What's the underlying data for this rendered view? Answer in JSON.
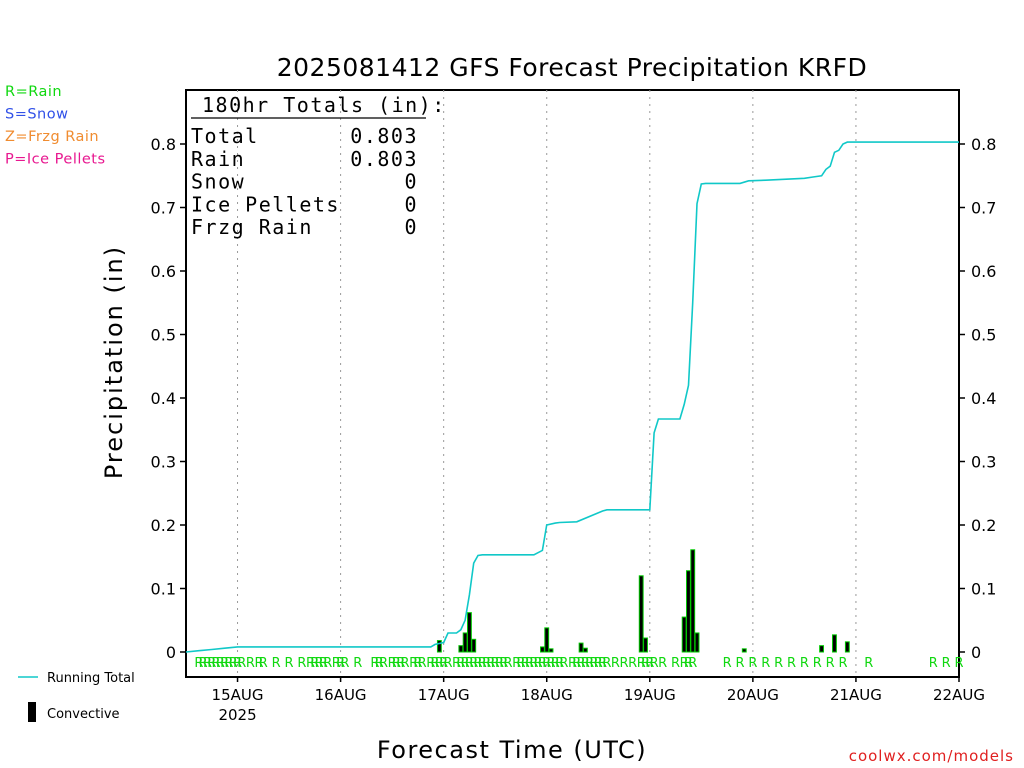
{
  "chart_data": {
    "type": "bar",
    "title": "2025081412 GFS Forecast Precipitation KRFD",
    "xlabel": "Forecast Time (UTC)",
    "ylabel": "Precipitation (in)",
    "ylim": [
      0,
      0.88
    ],
    "yticks": [
      0,
      0.1,
      0.2,
      0.3,
      0.4,
      0.5,
      0.6,
      0.7,
      0.8
    ],
    "ytick_labels": [
      "0",
      "0.1",
      "0.2",
      "0.3",
      "0.4",
      "0.5",
      "0.6",
      "0.7",
      "0.8"
    ],
    "xlim_hours_from_start": [
      0,
      180
    ],
    "x_tick_labels": [
      "15AUG",
      "16AUG",
      "17AUG",
      "18AUG",
      "19AUG",
      "20AUG",
      "21AUG",
      "22AUG"
    ],
    "x_tick_hours": [
      12,
      36,
      60,
      84,
      108,
      132,
      156,
      180
    ],
    "year_label": "2025",
    "grid": "vertical dotted at day boundaries",
    "series": [
      {
        "name": "Running Total",
        "color": "#10c8c8",
        "x_hours": [
          0,
          3,
          6,
          9,
          12,
          24,
          48,
          57,
          58,
          60,
          61,
          62,
          63,
          64,
          65,
          66,
          67,
          68,
          69,
          81,
          83,
          84,
          86,
          87,
          91,
          97,
          98,
          99,
          100,
          108,
          109,
          110,
          115,
          116,
          117,
          118,
          119,
          120,
          121,
          129,
          131,
          135,
          141,
          144,
          146,
          148,
          149,
          150,
          151,
          152,
          153,
          154,
          180
        ],
        "values": [
          0.0,
          0.002,
          0.004,
          0.006,
          0.008,
          0.008,
          0.008,
          0.008,
          0.012,
          0.015,
          0.03,
          0.03,
          0.03,
          0.035,
          0.05,
          0.09,
          0.14,
          0.152,
          0.153,
          0.153,
          0.16,
          0.2,
          0.203,
          0.204,
          0.205,
          0.222,
          0.224,
          0.224,
          0.224,
          0.224,
          0.345,
          0.367,
          0.367,
          0.39,
          0.42,
          0.55,
          0.706,
          0.737,
          0.738,
          0.738,
          0.742,
          0.743,
          0.745,
          0.746,
          0.748,
          0.75,
          0.76,
          0.765,
          0.787,
          0.79,
          0.8,
          0.803,
          0.803
        ]
      },
      {
        "name": "Convective",
        "color": "#000000",
        "edge_color": "#00c800",
        "x_hours": [
          59,
          64,
          65,
          66,
          67,
          83,
          84,
          85,
          92,
          93,
          106,
          107,
          116,
          117,
          118,
          119,
          130,
          148,
          151,
          154
        ],
        "values": [
          0.018,
          0.01,
          0.03,
          0.062,
          0.02,
          0.008,
          0.038,
          0.005,
          0.014,
          0.006,
          0.12,
          0.022,
          0.055,
          0.128,
          0.161,
          0.03,
          0.005,
          0.01,
          0.027,
          0.016
        ]
      }
    ],
    "precip_type_x_hours": [
      3,
      4,
      5,
      6,
      7,
      8,
      9,
      10,
      11,
      12,
      13,
      15,
      17,
      18,
      21,
      24,
      27,
      29,
      30,
      31,
      32,
      33,
      35,
      36,
      37,
      40,
      44,
      45,
      46,
      48,
      49,
      50,
      51,
      53,
      54,
      55,
      57,
      58,
      59,
      60,
      61,
      63,
      64,
      65,
      66,
      67,
      68,
      69,
      70,
      71,
      72,
      73,
      74,
      75,
      77,
      78,
      79,
      80,
      81,
      82,
      83,
      84,
      85,
      86,
      87,
      88,
      90,
      91,
      92,
      93,
      94,
      95,
      96,
      97,
      98,
      100,
      102,
      104,
      106,
      107,
      108,
      109,
      111,
      114,
      116,
      117,
      118,
      126,
      129,
      132,
      135,
      138,
      141,
      144,
      147,
      150,
      153,
      159,
      174,
      177,
      180
    ],
    "legend": {
      "type_keys": [
        {
          "text": "R=Rain",
          "color": "#10d810"
        },
        {
          "text": "S=Snow",
          "color": "#3050e8"
        },
        {
          "text": "Z=Frzg Rain",
          "color": "#f08c30"
        },
        {
          "text": "P=Ice Pellets",
          "color": "#e81890"
        }
      ],
      "running_total_label": "Running Total",
      "convective_label": "Convective",
      "position": "left"
    },
    "totals_box": {
      "header": "180hr Totals (in):",
      "rows": [
        {
          "label": "Total",
          "value": "0.803"
        },
        {
          "label": "Rain",
          "value": "0.803"
        },
        {
          "label": "Snow",
          "value": "0"
        },
        {
          "label": "Ice Pellets",
          "value": "0"
        },
        {
          "label": "Frzg Rain",
          "value": "0"
        }
      ]
    },
    "rain_marker": "R",
    "rain_marker_color": "#10d810",
    "credit": "coolwx.com/models",
    "credit_color": "#e02020"
  }
}
